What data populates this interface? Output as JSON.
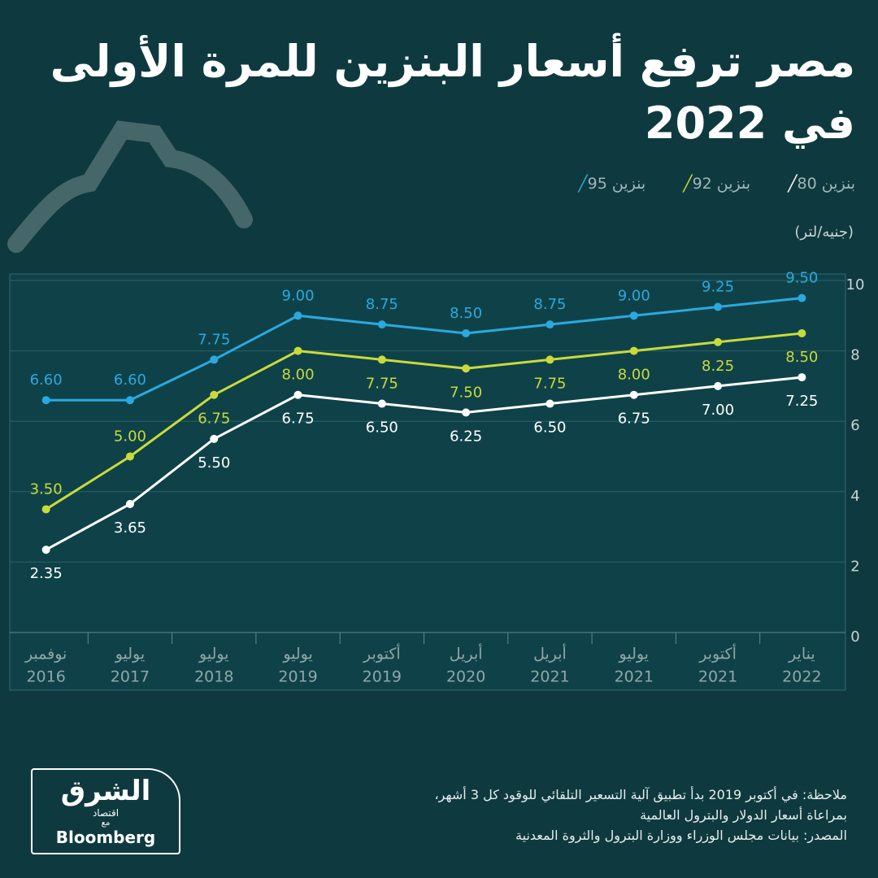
{
  "chart_data": {
    "type": "line",
    "title": "مصر ترفع أسعار البنزين للمرة الأولى في 2022",
    "unit_label": "(جنيه/لتر)",
    "categories": [
      [
        "نوفمبر",
        "2016"
      ],
      [
        "يوليو",
        "2017"
      ],
      [
        "يوليو",
        "2018"
      ],
      [
        "يوليو",
        "2019"
      ],
      [
        "أكتوبر",
        "2019"
      ],
      [
        "أبريل",
        "2020"
      ],
      [
        "أبريل",
        "2021"
      ],
      [
        "يوليو",
        "2021"
      ],
      [
        "أكتوبر",
        "2021"
      ],
      [
        "يناير",
        "2022"
      ]
    ],
    "series": [
      {
        "name": "بنزين 80",
        "color": "#ffffff",
        "values": [
          2.35,
          3.65,
          5.5,
          6.75,
          6.5,
          6.25,
          6.5,
          6.75,
          7.0,
          7.25
        ],
        "value_labels": [
          "2.35",
          "3.65",
          "5.50",
          "6.75",
          "6.50",
          "6.25",
          "6.50",
          "6.75",
          "7.00",
          "7.25"
        ]
      },
      {
        "name": "بنزين 92",
        "color": "#c9da3c",
        "values": [
          3.5,
          5.0,
          6.75,
          8.0,
          7.75,
          7.5,
          7.75,
          8.0,
          8.25,
          8.5
        ],
        "value_labels": [
          "3.50",
          "5.00",
          "6.75",
          "8.00",
          "7.75",
          "7.50",
          "7.75",
          "8.00",
          "8.25",
          "8.50"
        ]
      },
      {
        "name": "بنزين 95",
        "color": "#2aa9e0",
        "values": [
          6.6,
          6.6,
          7.75,
          9.0,
          8.75,
          8.5,
          8.75,
          9.0,
          9.25,
          9.5
        ],
        "value_labels": [
          "6.60",
          "6.60",
          "7.75",
          "9.00",
          "8.75",
          "8.50",
          "8.75",
          "9.00",
          "9.25",
          "9.50"
        ]
      }
    ],
    "ylim": [
      0,
      10
    ],
    "yticks": [
      0,
      2,
      4,
      6,
      8,
      10
    ],
    "grid": true
  },
  "notes": [
    "ملاحظة: في أكتوبر 2019 بدأ تطبيق آلية التسعير التلقائي للوقود كل 3 أشهر،",
    "بمراعاة أسعار الدولار والبترول العالمية",
    "المصدر: بيانات مجلس الوزراء ووزارة البترول والثروة المعدنية"
  ],
  "logo": {
    "name": "الشرق",
    "sub": "اقتصاد",
    "with": "مع",
    "brand": "Bloomberg"
  }
}
